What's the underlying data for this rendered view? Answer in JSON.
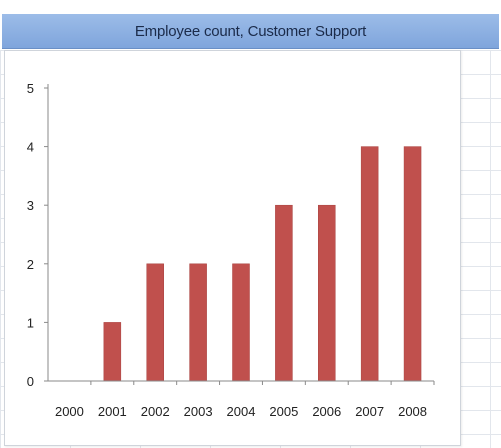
{
  "header": {
    "title": "Employee count, Customer Support"
  },
  "chart_data": {
    "type": "bar",
    "title": "Employee count, Customer Support",
    "categories": [
      "2000",
      "2001",
      "2002",
      "2003",
      "2004",
      "2005",
      "2006",
      "2007",
      "2008"
    ],
    "values": [
      0,
      1,
      2,
      2,
      2,
      3,
      3,
      4,
      4
    ],
    "xlabel": "",
    "ylabel": "",
    "ylim": [
      0,
      5
    ],
    "yticks": [
      0,
      1,
      2,
      3,
      4,
      5
    ],
    "grid": false,
    "legend": "none",
    "bar_color": "#c0504d"
  }
}
